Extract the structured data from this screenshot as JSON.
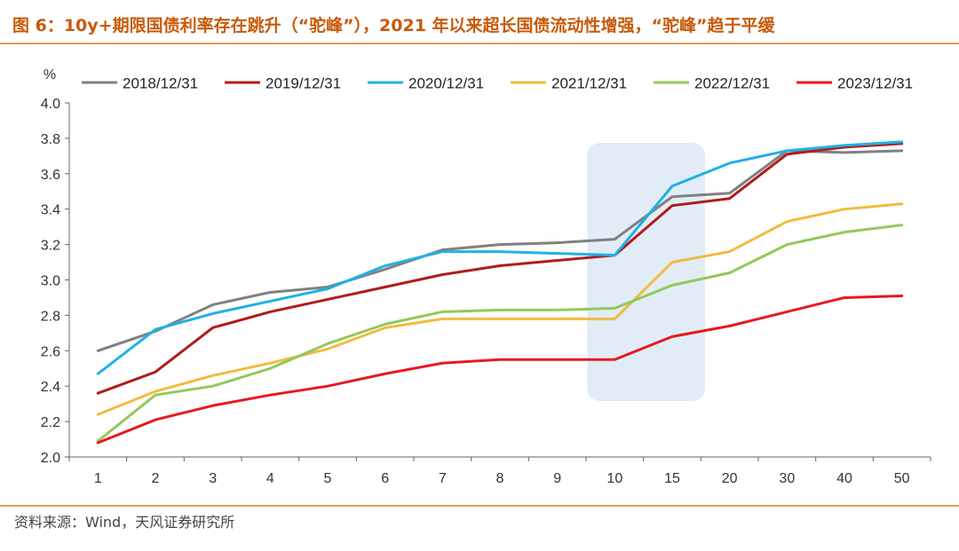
{
  "title": "图 6：10y+期限国债利率存在跳升（“驼峰”），2021 年以来超长国债流动性增强，“驼峰”趋于平缓",
  "source": "资料来源：Wind，天风证券研究所",
  "chart_data": {
    "type": "line",
    "ylabel": "%",
    "ylim": [
      2.0,
      4.0
    ],
    "yticks": [
      "4.0",
      "3.8",
      "3.6",
      "3.4",
      "3.2",
      "3.0",
      "2.8",
      "2.6",
      "2.4",
      "2.2",
      "2.0"
    ],
    "categories": [
      "1",
      "2",
      "3",
      "4",
      "5",
      "6",
      "7",
      "8",
      "9",
      "10",
      "15",
      "20",
      "30",
      "40",
      "50"
    ],
    "legend_position": "top",
    "grid": false,
    "highlight_range": [
      "10",
      "15"
    ],
    "highlight_color": "#dde9f6",
    "series": [
      {
        "name": "2018/12/31",
        "color": "#808080",
        "values": [
          2.6,
          2.71,
          2.86,
          2.93,
          2.96,
          3.06,
          3.17,
          3.2,
          3.21,
          3.23,
          3.47,
          3.49,
          3.73,
          3.72,
          3.73
        ]
      },
      {
        "name": "2019/12/31",
        "color": "#b01c1c",
        "values": [
          2.36,
          2.48,
          2.73,
          2.82,
          2.89,
          2.96,
          3.03,
          3.08,
          3.11,
          3.14,
          3.42,
          3.46,
          3.71,
          3.75,
          3.77
        ]
      },
      {
        "name": "2020/12/31",
        "color": "#1fb1e5",
        "values": [
          2.47,
          2.72,
          2.81,
          2.88,
          2.95,
          3.08,
          3.16,
          3.16,
          3.15,
          3.14,
          3.53,
          3.66,
          3.73,
          3.76,
          3.78
        ]
      },
      {
        "name": "2021/12/31",
        "color": "#f2bb3f",
        "values": [
          2.24,
          2.37,
          2.46,
          2.53,
          2.61,
          2.73,
          2.78,
          2.78,
          2.78,
          2.78,
          3.1,
          3.16,
          3.33,
          3.4,
          3.43
        ]
      },
      {
        "name": "2022/12/31",
        "color": "#92c95a",
        "values": [
          2.09,
          2.35,
          2.4,
          2.5,
          2.64,
          2.75,
          2.82,
          2.83,
          2.83,
          2.84,
          2.97,
          3.04,
          3.2,
          3.27,
          3.31
        ]
      },
      {
        "name": "2023/12/31",
        "color": "#e8191e",
        "values": [
          2.08,
          2.21,
          2.29,
          2.35,
          2.4,
          2.47,
          2.53,
          2.55,
          2.55,
          2.55,
          2.68,
          2.74,
          2.82,
          2.9,
          2.91
        ]
      }
    ]
  }
}
